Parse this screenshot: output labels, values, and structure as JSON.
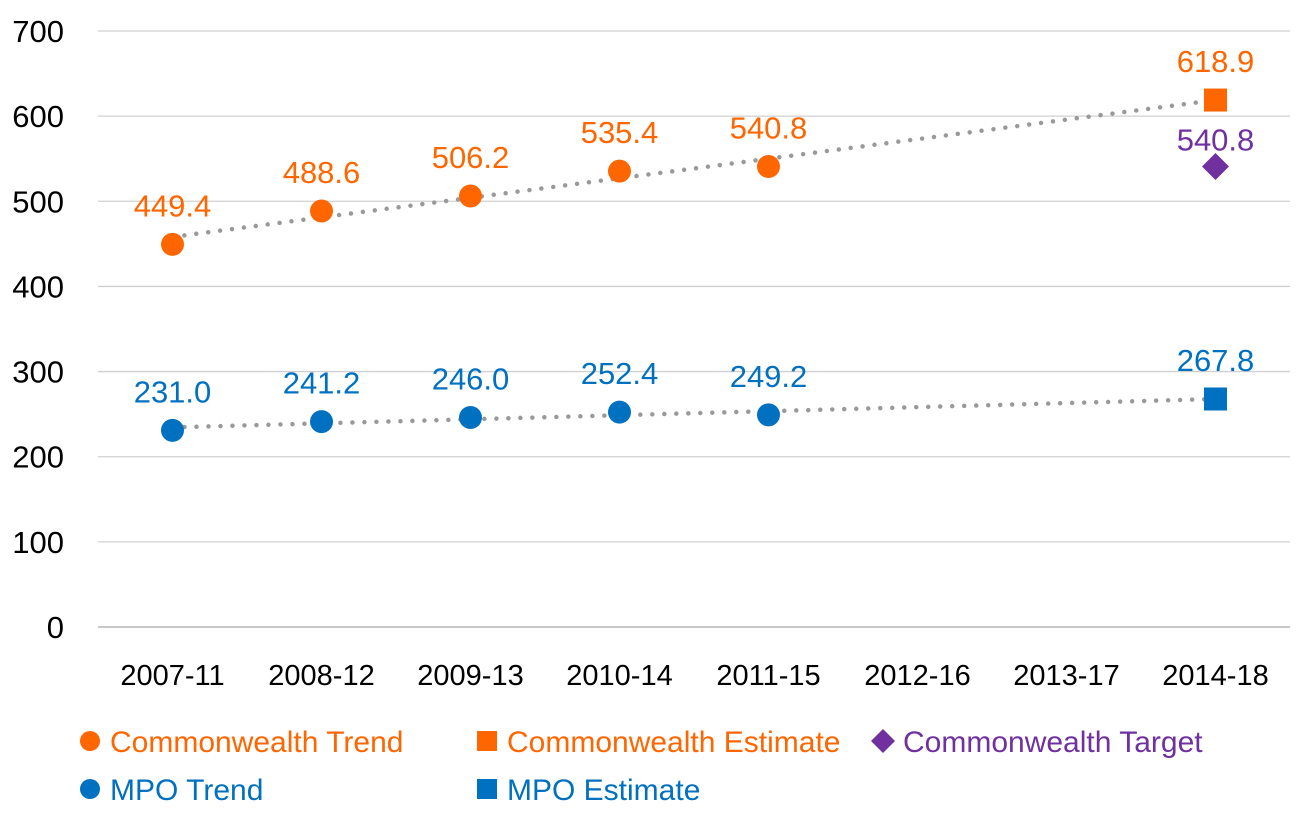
{
  "chart_data": {
    "type": "scatter",
    "title": "",
    "xlabel": "",
    "ylabel": "",
    "categories": [
      "2007-11",
      "2008-12",
      "2009-13",
      "2010-14",
      "2011-15",
      "2012-16",
      "2013-17",
      "2014-18"
    ],
    "ylim": [
      0,
      700
    ],
    "yticks": [
      0,
      100,
      200,
      300,
      400,
      500,
      600,
      700
    ],
    "grid": true,
    "legend_position": "bottom",
    "series": [
      {
        "name": "Commonwealth Trend",
        "marker": "circle",
        "color": "#FF6600",
        "points": [
          {
            "x": "2007-11",
            "y": 449.4,
            "label": "449.4"
          },
          {
            "x": "2008-12",
            "y": 488.6,
            "label": "488.6"
          },
          {
            "x": "2009-13",
            "y": 506.2,
            "label": "506.2"
          },
          {
            "x": "2010-14",
            "y": 535.4,
            "label": "535.4"
          },
          {
            "x": "2011-15",
            "y": 540.8,
            "label": "540.8"
          }
        ]
      },
      {
        "name": "Commonwealth Estimate",
        "marker": "square",
        "color": "#FF6600",
        "points": [
          {
            "x": "2014-18",
            "y": 618.9,
            "label": "618.9"
          }
        ]
      },
      {
        "name": "Commonwealth Target",
        "marker": "diamond",
        "color": "#7030A0",
        "points": [
          {
            "x": "2014-18",
            "y": 540.8,
            "label": "540.8"
          }
        ]
      },
      {
        "name": "MPO Trend",
        "marker": "circle",
        "color": "#0070C0",
        "points": [
          {
            "x": "2007-11",
            "y": 231.0,
            "label": "231.0"
          },
          {
            "x": "2008-12",
            "y": 241.2,
            "label": "241.2"
          },
          {
            "x": "2009-13",
            "y": 246.0,
            "label": "246.0"
          },
          {
            "x": "2010-14",
            "y": 252.4,
            "label": "252.4"
          },
          {
            "x": "2011-15",
            "y": 249.2,
            "label": "249.2"
          }
        ]
      },
      {
        "name": "MPO Estimate",
        "marker": "square",
        "color": "#0070C0",
        "points": [
          {
            "x": "2014-18",
            "y": 267.8,
            "label": "267.8"
          }
        ]
      }
    ],
    "trendlines": [
      {
        "of": "Commonwealth Trend",
        "style": "dotted",
        "color": "#999999",
        "type": "linear",
        "from": "2007-11",
        "to": "2014-18"
      },
      {
        "of": "MPO Trend",
        "style": "dotted",
        "color": "#999999",
        "type": "linear",
        "from": "2007-11",
        "to": "2014-18"
      }
    ]
  }
}
